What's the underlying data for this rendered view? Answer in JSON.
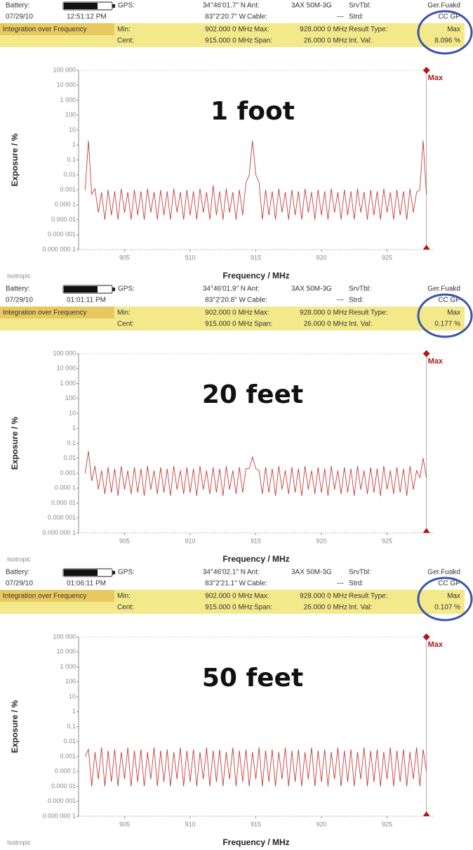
{
  "headers": [
    {
      "battery_label": "Battery:",
      "gps_label": "GPS:",
      "lat": "34°46'01.7\" N",
      "ant_label": "Ant:",
      "antenna": "3AX 50M-3G",
      "srvtbl_label": "SrvTbl:",
      "srvtbl": "Ger.Fuakd",
      "date": "07/29/10",
      "time": "12:51:12 PM",
      "lon": "83°2'20.7\" W",
      "cable_label": "Cable:",
      "cable": "---",
      "strd_label": "Strd:",
      "strd": "CC GP",
      "mode": "Integration over Frequency",
      "min_label": "Min:",
      "min": "902.000 0 MHz",
      "max_label": "Max:",
      "max": "928.000 0 MHz",
      "result_type_label": "Result Type:",
      "result_type": "Max",
      "cent_label": "Cent:",
      "cent": "915.000 0 MHz",
      "span_label": "Span:",
      "span": "26.000 0 MHz",
      "int_val_label": "Int. Val:",
      "int_val": "8.096 %"
    },
    {
      "battery_label": "Battery:",
      "gps_label": "GPS:",
      "lat": "34°46'01.9\" N",
      "ant_label": "Ant:",
      "antenna": "3AX 50M-3G",
      "srvtbl_label": "SrvTbl:",
      "srvtbl": "Ger.Fuakd",
      "date": "07/29/10",
      "time": "01:01:11 PM",
      "lon": "83°2'20.8\" W",
      "cable_label": "Cable:",
      "cable": "---",
      "strd_label": "Strd:",
      "strd": "CC GP",
      "mode": "Integration over Frequency",
      "min_label": "Min:",
      "min": "902.000 0 MHz",
      "max_label": "Max:",
      "max": "928.000 0 MHz",
      "result_type_label": "Result Type:",
      "result_type": "Max",
      "cent_label": "Cent:",
      "cent": "915.000 0 MHz",
      "span_label": "Span:",
      "span": "26.000 0 MHz",
      "int_val_label": "Int. Val:",
      "int_val": "0.177 %"
    },
    {
      "battery_label": "Battery:",
      "gps_label": "GPS:",
      "lat": "34°46'02.1\" N",
      "ant_label": "Ant:",
      "antenna": "3AX 50M-3G",
      "srvtbl_label": "SrvTbl:",
      "srvtbl": "Ger.Fuakd",
      "date": "07/29/10",
      "time": "01:06:11 PM",
      "lon": "83°2'21.1\" W",
      "cable_label": "Cable:",
      "cable": "---",
      "strd_label": "Strd:",
      "strd": "CC GP",
      "mode": "Integration over Frequency",
      "min_label": "Min:",
      "min": "902.000 0 MHz",
      "max_label": "Max:",
      "max": "928.000 0 MHz",
      "result_type_label": "Result Type:",
      "result_type": "Max",
      "cent_label": "Cent:",
      "cent": "915.000 0 MHz",
      "span_label": "Span:",
      "span": "26.000 0 MHz",
      "int_val_label": "Int. Val:",
      "int_val": "0.107 %"
    }
  ],
  "chart_data": [
    {
      "type": "line",
      "title": "1 foot",
      "x_label": "Frequency / MHz",
      "y_label": "Exposure / %",
      "note": "Isotropic",
      "color": "#c83c3c",
      "log_y": true,
      "grid": false,
      "marker": {
        "label": "Max",
        "x": 928
      },
      "xlim": [
        901.5,
        928.5
      ],
      "xticks": [
        905,
        910,
        915,
        920,
        925
      ],
      "ylim": [
        1e-07,
        100000
      ],
      "yticks": [
        {
          "value": 100000,
          "label": "100 000"
        },
        {
          "value": 10000,
          "label": "10 000"
        },
        {
          "value": 1000,
          "label": "1 000"
        },
        100,
        10,
        1,
        0.1,
        0.01,
        0.001,
        {
          "value": 0.0001,
          "label": "0.000 1"
        },
        {
          "value": 1e-05,
          "label": "0.000 01"
        },
        {
          "value": 1e-06,
          "label": "0.000 001"
        },
        {
          "value": 1e-07,
          "label": "0.000 000 1"
        }
      ],
      "x": [
        902,
        902.25,
        902.5,
        902.75,
        903,
        903.25,
        903.5,
        903.75,
        904,
        904.25,
        904.5,
        904.75,
        905,
        905.25,
        905.5,
        905.75,
        906,
        906.25,
        906.5,
        906.75,
        907,
        907.25,
        907.5,
        907.75,
        908,
        908.25,
        908.5,
        908.75,
        909,
        909.25,
        909.5,
        909.75,
        910,
        910.25,
        910.5,
        910.75,
        911,
        911.25,
        911.5,
        911.75,
        912,
        912.25,
        912.5,
        912.75,
        913,
        913.25,
        913.5,
        913.75,
        914,
        914.25,
        914.5,
        914.75,
        915,
        915.25,
        915.5,
        915.75,
        916,
        916.25,
        916.5,
        916.75,
        917,
        917.25,
        917.5,
        917.75,
        918,
        918.25,
        918.5,
        918.75,
        919,
        919.25,
        919.5,
        919.75,
        920,
        920.25,
        920.5,
        920.75,
        921,
        921.25,
        921.5,
        921.75,
        922,
        922.25,
        922.5,
        922.75,
        923,
        923.25,
        923.5,
        923.75,
        924,
        924.25,
        924.5,
        924.75,
        925,
        925.25,
        925.5,
        925.75,
        926,
        926.25,
        926.5,
        926.75,
        927,
        927.25,
        927.5,
        927.75,
        928
      ],
      "values": [
        0.001,
        2,
        0.0005,
        0.0012,
        3e-05,
        0.0007,
        1e-05,
        0.001,
        2e-05,
        0.0008,
        1e-05,
        0.0012,
        3e-05,
        0.0007,
        1e-05,
        0.001,
        2e-05,
        0.0008,
        1e-05,
        0.0012,
        3e-05,
        0.0007,
        1e-05,
        0.001,
        2e-05,
        0.0008,
        1e-05,
        0.0012,
        3e-05,
        0.0007,
        1e-05,
        0.001,
        2e-05,
        0.0008,
        1e-05,
        0.0012,
        3e-05,
        0.0007,
        1e-05,
        0.002,
        2e-05,
        0.0008,
        1e-05,
        0.0012,
        3e-05,
        0.0007,
        1e-05,
        0.001,
        2e-05,
        0.003,
        0.01,
        2,
        0.01,
        0.003,
        1e-05,
        0.001,
        2e-05,
        0.0008,
        1e-05,
        0.0012,
        3e-05,
        0.0007,
        1e-05,
        0.001,
        2e-05,
        0.0008,
        1e-05,
        0.0012,
        3e-05,
        0.0007,
        1e-05,
        0.001,
        2e-05,
        0.0008,
        1e-05,
        0.0012,
        3e-05,
        0.0007,
        1e-05,
        0.001,
        2e-05,
        0.0008,
        1e-05,
        0.0012,
        3e-05,
        0.0007,
        1e-05,
        0.001,
        2e-05,
        0.0008,
        1e-05,
        0.0012,
        3e-05,
        0.0007,
        1e-05,
        0.001,
        2e-05,
        0.0008,
        1e-05,
        0.0012,
        3e-05,
        0.0007,
        0.001,
        2,
        0.0005
      ]
    },
    {
      "type": "line",
      "title": "20 feet",
      "x_label": "Frequency / MHz",
      "y_label": "Exposure / %",
      "note": "Isotropic",
      "color": "#c83c3c",
      "log_y": true,
      "grid": false,
      "marker": {
        "label": "Max",
        "x": 928
      },
      "xlim": [
        901.5,
        928.5
      ],
      "xticks": [
        905,
        910,
        915,
        920,
        925
      ],
      "ylim": [
        1e-07,
        100000
      ],
      "yticks": [
        {
          "value": 100000,
          "label": "100 000"
        },
        {
          "value": 10000,
          "label": "10 000"
        },
        {
          "value": 1000,
          "label": "1 000"
        },
        100,
        10,
        1,
        0.1,
        0.01,
        0.001,
        {
          "value": 0.0001,
          "label": "0.000 1"
        },
        {
          "value": 1e-05,
          "label": "0.000 01"
        },
        {
          "value": 1e-06,
          "label": "0.000 001"
        },
        {
          "value": 1e-07,
          "label": "0.000 000 1"
        }
      ],
      "x": [
        902,
        902.25,
        902.5,
        902.75,
        903,
        903.25,
        903.5,
        903.75,
        904,
        904.25,
        904.5,
        904.75,
        905,
        905.25,
        905.5,
        905.75,
        906,
        906.25,
        906.5,
        906.75,
        907,
        907.25,
        907.5,
        907.75,
        908,
        908.25,
        908.5,
        908.75,
        909,
        909.25,
        909.5,
        909.75,
        910,
        910.25,
        910.5,
        910.75,
        911,
        911.25,
        911.5,
        911.75,
        912,
        912.25,
        912.5,
        912.75,
        913,
        913.25,
        913.5,
        913.75,
        914,
        914.25,
        914.5,
        914.75,
        915,
        915.25,
        915.5,
        915.75,
        916,
        916.25,
        916.5,
        916.75,
        917,
        917.25,
        917.5,
        917.75,
        918,
        918.25,
        918.5,
        918.75,
        919,
        919.25,
        919.5,
        919.75,
        920,
        920.25,
        920.5,
        920.75,
        921,
        921.25,
        921.5,
        921.75,
        922,
        922.25,
        922.5,
        922.75,
        923,
        923.25,
        923.5,
        923.75,
        924,
        924.25,
        924.5,
        924.75,
        925,
        925.25,
        925.5,
        925.75,
        926,
        926.25,
        926.5,
        926.75,
        927,
        927.25,
        927.5,
        927.75,
        928
      ],
      "values": [
        0.001,
        0.03,
        0.0003,
        0.003,
        8e-05,
        0.0015,
        4e-05,
        0.0025,
        5e-05,
        0.002,
        3e-05,
        0.003,
        8e-05,
        0.0015,
        4e-05,
        0.0025,
        5e-05,
        0.002,
        3e-05,
        0.003,
        8e-05,
        0.0015,
        4e-05,
        0.0025,
        5e-05,
        0.002,
        3e-05,
        0.003,
        8e-05,
        0.0015,
        4e-05,
        0.0025,
        5e-05,
        0.002,
        3e-05,
        0.003,
        8e-05,
        0.0015,
        4e-05,
        0.0025,
        5e-05,
        0.002,
        3e-05,
        0.003,
        8e-05,
        0.0015,
        4e-05,
        0.0025,
        5e-05,
        0.002,
        0.002,
        0.012,
        0.002,
        0.0015,
        4e-05,
        0.0025,
        5e-05,
        0.002,
        3e-05,
        0.003,
        8e-05,
        0.0015,
        4e-05,
        0.0025,
        5e-05,
        0.002,
        3e-05,
        0.003,
        8e-05,
        0.0015,
        4e-05,
        0.0025,
        5e-05,
        0.002,
        3e-05,
        0.003,
        8e-05,
        0.0015,
        4e-05,
        0.0025,
        5e-05,
        0.002,
        3e-05,
        0.003,
        8e-05,
        0.0015,
        4e-05,
        0.0025,
        5e-05,
        0.002,
        3e-05,
        0.003,
        8e-05,
        0.0015,
        4e-05,
        0.0025,
        5e-05,
        0.002,
        3e-05,
        0.003,
        8e-05,
        0.0015,
        0.0005,
        0.01,
        0.0005
      ]
    },
    {
      "type": "line",
      "title": "50 feet",
      "x_label": "Frequency / MHz",
      "y_label": "Exposure / %",
      "note": "Isotropic",
      "color": "#c83c3c",
      "log_y": true,
      "grid": false,
      "marker": {
        "label": "Max",
        "x": 928
      },
      "xlim": [
        901.5,
        928.5
      ],
      "xticks": [
        905,
        910,
        915,
        920,
        925
      ],
      "ylim": [
        1e-07,
        100000
      ],
      "yticks": [
        {
          "value": 100000,
          "label": "100 000"
        },
        {
          "value": 10000,
          "label": "10 000"
        },
        {
          "value": 1000,
          "label": "1 000"
        },
        100,
        10,
        1,
        0.1,
        0.01,
        0.001,
        {
          "value": 0.0001,
          "label": "0.000 1"
        },
        {
          "value": 1e-05,
          "label": "0.000 01"
        },
        {
          "value": 1e-06,
          "label": "0.000 001"
        },
        {
          "value": 1e-07,
          "label": "0.000 000 1"
        }
      ],
      "x": [
        902,
        902.25,
        902.5,
        902.75,
        903,
        903.25,
        903.5,
        903.75,
        904,
        904.25,
        904.5,
        904.75,
        905,
        905.25,
        905.5,
        905.75,
        906,
        906.25,
        906.5,
        906.75,
        907,
        907.25,
        907.5,
        907.75,
        908,
        908.25,
        908.5,
        908.75,
        909,
        909.25,
        909.5,
        909.75,
        910,
        910.25,
        910.5,
        910.75,
        911,
        911.25,
        911.5,
        911.75,
        912,
        912.25,
        912.5,
        912.75,
        913,
        913.25,
        913.5,
        913.75,
        914,
        914.25,
        914.5,
        914.75,
        915,
        915.25,
        915.5,
        915.75,
        916,
        916.25,
        916.5,
        916.75,
        917,
        917.25,
        917.5,
        917.75,
        918,
        918.25,
        918.5,
        918.75,
        919,
        919.25,
        919.5,
        919.75,
        920,
        920.25,
        920.5,
        920.75,
        921,
        921.25,
        921.5,
        921.75,
        922,
        922.25,
        922.5,
        922.75,
        923,
        923.25,
        923.5,
        923.75,
        924,
        924.25,
        924.5,
        924.75,
        925,
        925.25,
        925.5,
        925.75,
        926,
        926.25,
        926.5,
        926.75,
        927,
        927.25,
        927.5,
        927.75,
        928
      ],
      "values": [
        0.001,
        0.003,
        1e-05,
        0.002,
        3e-05,
        0.004,
        1e-05,
        0.0025,
        2e-05,
        0.003,
        1e-05,
        0.002,
        3e-05,
        0.004,
        1e-05,
        0.0025,
        2e-05,
        0.003,
        1e-05,
        0.002,
        3e-05,
        0.004,
        1e-05,
        0.0025,
        2e-05,
        0.003,
        1e-05,
        0.002,
        3e-05,
        0.004,
        1e-05,
        0.0025,
        2e-05,
        0.003,
        1e-05,
        0.002,
        3e-05,
        0.004,
        1e-05,
        0.0025,
        2e-05,
        0.003,
        1e-05,
        0.002,
        3e-05,
        0.004,
        1e-05,
        0.0025,
        2e-05,
        0.003,
        1e-05,
        0.002,
        3e-05,
        0.004,
        1e-05,
        0.0025,
        2e-05,
        0.003,
        1e-05,
        0.002,
        3e-05,
        0.004,
        1e-05,
        0.0025,
        2e-05,
        0.003,
        1e-05,
        0.002,
        3e-05,
        0.004,
        1e-05,
        0.0025,
        2e-05,
        0.003,
        1e-05,
        0.002,
        3e-05,
        0.004,
        1e-05,
        0.0025,
        2e-05,
        0.003,
        1e-05,
        0.002,
        3e-05,
        0.004,
        1e-05,
        0.0025,
        2e-05,
        0.003,
        1e-05,
        0.002,
        3e-05,
        0.004,
        1e-05,
        0.0025,
        2e-05,
        0.003,
        1e-05,
        0.002,
        3e-05,
        0.004,
        1e-05,
        0.003,
        0.0001
      ]
    }
  ]
}
